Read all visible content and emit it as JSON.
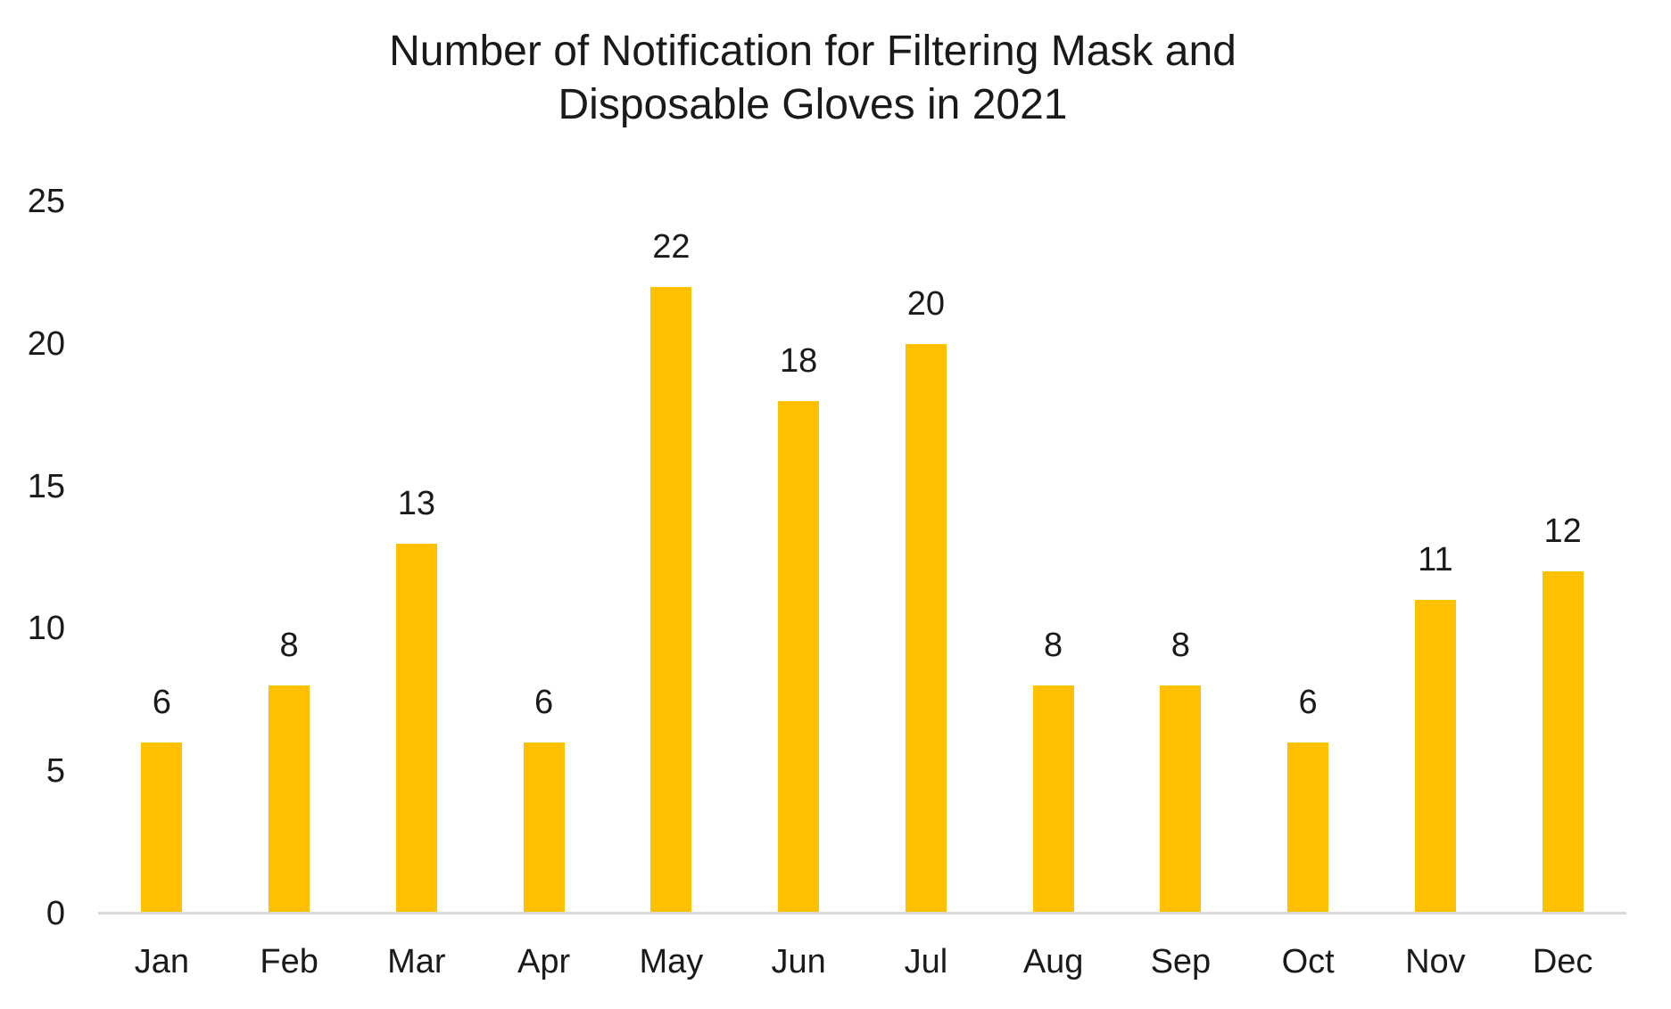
{
  "chart_data": {
    "type": "bar",
    "title": "Number of Notification for Filtering Mask and Disposable Gloves in 2021",
    "title_lines": [
      "Number of Notification for Filtering Mask and",
      "Disposable Gloves in 2021"
    ],
    "categories": [
      "Jan",
      "Feb",
      "Mar",
      "Apr",
      "May",
      "Jun",
      "Jul",
      "Aug",
      "Sep",
      "Oct",
      "Nov",
      "Dec"
    ],
    "values": [
      6,
      8,
      13,
      6,
      22,
      18,
      20,
      8,
      8,
      6,
      11,
      12
    ],
    "data_labels": [
      6,
      8,
      13,
      6,
      22,
      18,
      20,
      8,
      8,
      6,
      11,
      12
    ],
    "xlabel": "",
    "ylabel": "",
    "ylim": [
      0,
      25
    ],
    "yticks": [
      0,
      5,
      10,
      15,
      20,
      25
    ],
    "grid": false,
    "legend": false,
    "colors": {
      "bar": "#FFC000",
      "axis_line": "#D9D9D9",
      "text": "#1a1a1a"
    }
  }
}
